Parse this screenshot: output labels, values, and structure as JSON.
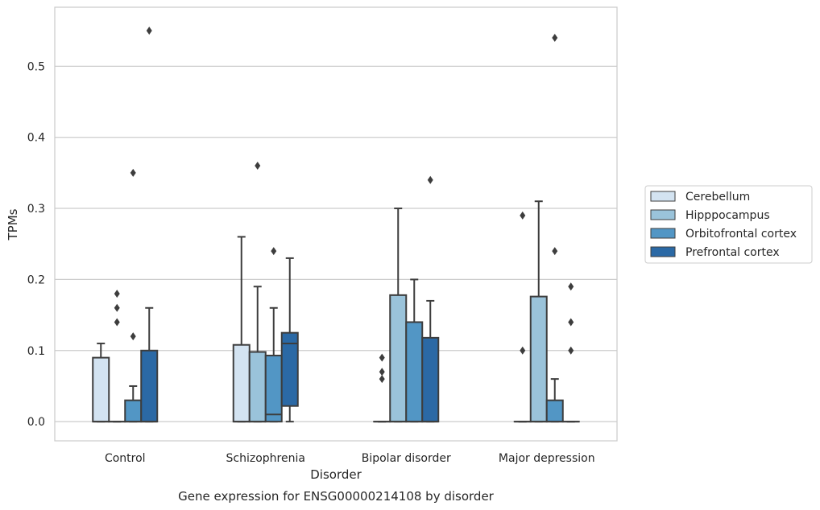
{
  "chart_data": {
    "type": "box",
    "title": "",
    "caption": "Gene expression for ENSG00000214108 by disorder",
    "xlabel": "Disorder",
    "ylabel": "TPMs",
    "ylim": [
      -0.027,
      0.583
    ],
    "yticks": [
      0.0,
      0.1,
      0.2,
      0.3,
      0.4,
      0.5
    ],
    "ytick_labels": [
      "0.0",
      "0.1",
      "0.2",
      "0.3",
      "0.4",
      "0.5"
    ],
    "grid": "horizontal",
    "legend_position": "right",
    "categories": [
      "Control",
      "Schizophrenia",
      "Bipolar disorder",
      "Major depression"
    ],
    "series": [
      {
        "name": "Cerebellum",
        "color": "#d3e3f1",
        "boxes": [
          {
            "whislo": 0.0,
            "q1": 0.0,
            "med": 0.0,
            "q3": 0.09,
            "whishi": 0.11,
            "fliers": []
          },
          {
            "whislo": 0.0,
            "q1": 0.0,
            "med": 0.0,
            "q3": 0.108,
            "whishi": 0.26,
            "fliers": []
          },
          {
            "whislo": 0.0,
            "q1": 0.0,
            "med": 0.0,
            "q3": 0.0,
            "whishi": 0.0,
            "fliers": [
              0.09,
              0.07,
              0.06
            ]
          },
          {
            "whislo": 0.0,
            "q1": 0.0,
            "med": 0.0,
            "q3": 0.0,
            "whishi": 0.0,
            "fliers": [
              0.29,
              0.1
            ]
          }
        ]
      },
      {
        "name": "Hipppocampus",
        "color": "#9ac3da",
        "boxes": [
          {
            "whislo": 0.0,
            "q1": 0.0,
            "med": 0.0,
            "q3": 0.0,
            "whishi": 0.0,
            "fliers": [
              0.18,
              0.16,
              0.14
            ]
          },
          {
            "whislo": 0.0,
            "q1": 0.0,
            "med": 0.0,
            "q3": 0.098,
            "whishi": 0.19,
            "fliers": [
              0.36
            ]
          },
          {
            "whislo": 0.0,
            "q1": 0.0,
            "med": 0.0,
            "q3": 0.178,
            "whishi": 0.3,
            "fliers": []
          },
          {
            "whislo": 0.0,
            "q1": 0.0,
            "med": 0.0,
            "q3": 0.176,
            "whishi": 0.31,
            "fliers": []
          }
        ]
      },
      {
        "name": "Orbitofrontal cortex",
        "color": "#5296c5",
        "boxes": [
          {
            "whislo": 0.0,
            "q1": 0.0,
            "med": 0.0,
            "q3": 0.03,
            "whishi": 0.05,
            "fliers": [
              0.35,
              0.12
            ]
          },
          {
            "whislo": 0.0,
            "q1": 0.0,
            "med": 0.01,
            "q3": 0.093,
            "whishi": 0.16,
            "fliers": [
              0.24
            ]
          },
          {
            "whislo": 0.0,
            "q1": 0.0,
            "med": 0.0,
            "q3": 0.14,
            "whishi": 0.2,
            "fliers": []
          },
          {
            "whislo": 0.0,
            "q1": 0.0,
            "med": 0.0,
            "q3": 0.03,
            "whishi": 0.06,
            "fliers": [
              0.54,
              0.24
            ]
          }
        ]
      },
      {
        "name": "Prefrontal cortex",
        "color": "#2b69a5",
        "boxes": [
          {
            "whislo": 0.0,
            "q1": 0.0,
            "med": 0.0,
            "q3": 0.1,
            "whishi": 0.16,
            "fliers": [
              0.55
            ]
          },
          {
            "whislo": 0.0,
            "q1": 0.022,
            "med": 0.11,
            "q3": 0.125,
            "whishi": 0.23,
            "fliers": []
          },
          {
            "whislo": 0.0,
            "q1": 0.0,
            "med": 0.0,
            "q3": 0.118,
            "whishi": 0.17,
            "fliers": [
              0.34
            ]
          },
          {
            "whislo": 0.0,
            "q1": 0.0,
            "med": 0.0,
            "q3": 0.0,
            "whishi": 0.0,
            "fliers": [
              0.19,
              0.14,
              0.1
            ]
          }
        ]
      }
    ]
  }
}
